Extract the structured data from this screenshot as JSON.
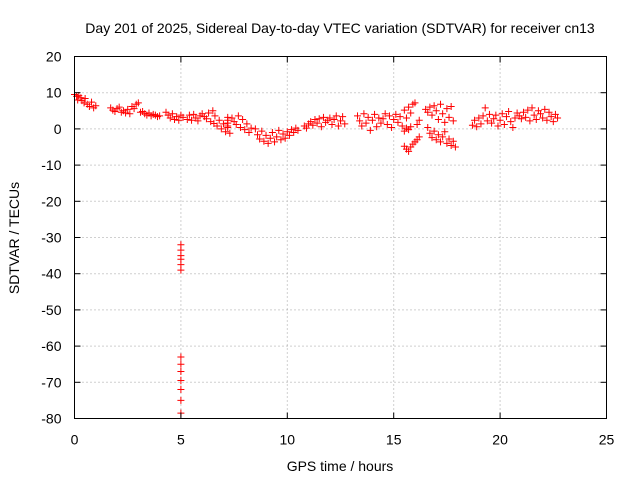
{
  "chart_data": {
    "type": "scatter",
    "title": "Day 201 of 2025, Sidereal Day-to-day VTEC variation (SDTVAR) for receiver cn13",
    "xlabel": "GPS time / hours",
    "ylabel": "SDTVAR / TECUs",
    "xlim": [
      0,
      25
    ],
    "ylim": [
      -80,
      20
    ],
    "xticks": [
      0,
      5,
      10,
      15,
      20,
      25
    ],
    "yticks": [
      20,
      10,
      0,
      -10,
      -20,
      -30,
      -40,
      -50,
      -60,
      -70,
      -80
    ],
    "grid": true,
    "marker": "+",
    "color": "#ff0000",
    "series": [
      {
        "name": "SDTVAR",
        "points": [
          [
            0.0,
            9.5
          ],
          [
            0.1,
            9.0
          ],
          [
            0.15,
            8.0
          ],
          [
            0.2,
            9.2
          ],
          [
            0.3,
            8.6
          ],
          [
            0.35,
            7.8
          ],
          [
            0.45,
            7.2
          ],
          [
            0.5,
            8.4
          ],
          [
            0.6,
            6.8
          ],
          [
            0.7,
            6.2
          ],
          [
            0.8,
            7.4
          ],
          [
            0.9,
            5.8
          ],
          [
            1.0,
            6.4
          ],
          [
            1.7,
            5.8
          ],
          [
            1.8,
            5.2
          ],
          [
            1.9,
            4.8
          ],
          [
            2.0,
            5.6
          ],
          [
            2.1,
            6.0
          ],
          [
            2.2,
            4.6
          ],
          [
            2.3,
            5.0
          ],
          [
            2.4,
            4.4
          ],
          [
            2.5,
            5.4
          ],
          [
            2.6,
            4.2
          ],
          [
            2.7,
            6.2
          ],
          [
            2.8,
            5.6
          ],
          [
            2.9,
            6.8
          ],
          [
            3.0,
            7.2
          ],
          [
            3.1,
            4.6
          ],
          [
            3.2,
            4.8
          ],
          [
            3.3,
            4.2
          ],
          [
            3.4,
            3.8
          ],
          [
            3.5,
            4.4
          ],
          [
            3.6,
            3.6
          ],
          [
            3.7,
            4.0
          ],
          [
            3.8,
            3.8
          ],
          [
            3.9,
            3.4
          ],
          [
            4.0,
            3.6
          ],
          [
            4.3,
            4.6
          ],
          [
            4.4,
            3.8
          ],
          [
            4.5,
            3.0
          ],
          [
            4.6,
            4.2
          ],
          [
            4.7,
            2.6
          ],
          [
            4.8,
            3.4
          ],
          [
            4.9,
            2.4
          ],
          [
            5.0,
            3.8
          ],
          [
            5.0,
            -32
          ],
          [
            5.0,
            -33.5
          ],
          [
            5.0,
            -35
          ],
          [
            5.0,
            -36
          ],
          [
            5.0,
            -37.5
          ],
          [
            5.0,
            -39
          ],
          [
            5.0,
            -63
          ],
          [
            5.0,
            -65
          ],
          [
            5.0,
            -67
          ],
          [
            5.0,
            -69.5
          ],
          [
            5.0,
            -72
          ],
          [
            5.0,
            -75
          ],
          [
            5.0,
            -78.5
          ],
          [
            5.1,
            3.2
          ],
          [
            5.3,
            2.6
          ],
          [
            5.4,
            3.8
          ],
          [
            5.5,
            2.4
          ],
          [
            5.6,
            4.0
          ],
          [
            5.7,
            3.0
          ],
          [
            5.8,
            2.2
          ],
          [
            5.9,
            3.6
          ],
          [
            6.0,
            4.2
          ],
          [
            6.1,
            3.4
          ],
          [
            6.2,
            2.8
          ],
          [
            6.3,
            4.4
          ],
          [
            6.4,
            2.0
          ],
          [
            6.5,
            5.0
          ],
          [
            6.55,
            1.5
          ],
          [
            6.6,
            3.6
          ],
          [
            6.7,
            0.8
          ],
          [
            6.8,
            2.4
          ],
          [
            6.9,
            0.0
          ],
          [
            7.0,
            1.4
          ],
          [
            7.1,
            -0.8
          ],
          [
            7.2,
            0.4
          ],
          [
            7.3,
            -1.2
          ],
          [
            7.2,
            3.2
          ],
          [
            7.2,
            2.4
          ],
          [
            7.2,
            1.6
          ],
          [
            7.2,
            0.8
          ],
          [
            7.4,
            3.0
          ],
          [
            7.5,
            2.0
          ],
          [
            7.6,
            1.2
          ],
          [
            7.7,
            3.6
          ],
          [
            7.8,
            0.4
          ],
          [
            7.9,
            2.6
          ],
          [
            8.0,
            -0.2
          ],
          [
            8.1,
            1.4
          ],
          [
            8.2,
            -1.0
          ],
          [
            8.3,
            0.2
          ],
          [
            8.5,
            0.0
          ],
          [
            8.6,
            -1.6
          ],
          [
            8.7,
            -2.8
          ],
          [
            8.8,
            -0.6
          ],
          [
            8.9,
            -3.4
          ],
          [
            9.0,
            -1.8
          ],
          [
            9.1,
            -4.0
          ],
          [
            9.2,
            -2.6
          ],
          [
            9.3,
            -1.0
          ],
          [
            9.4,
            -3.6
          ],
          [
            9.5,
            -2.2
          ],
          [
            9.6,
            -0.4
          ],
          [
            9.7,
            -3.0
          ],
          [
            9.8,
            -1.4
          ],
          [
            9.9,
            -2.6
          ],
          [
            10.0,
            -0.8
          ],
          [
            10.1,
            -1.8
          ],
          [
            10.2,
            -0.2
          ],
          [
            10.3,
            -1.0
          ],
          [
            10.4,
            0.2
          ],
          [
            10.5,
            -0.4
          ],
          [
            10.8,
            0.8
          ],
          [
            10.9,
            0.2
          ],
          [
            11.0,
            1.4
          ],
          [
            11.1,
            2.0
          ],
          [
            11.2,
            1.0
          ],
          [
            11.3,
            2.6
          ],
          [
            11.4,
            1.6
          ],
          [
            11.5,
            2.8
          ],
          [
            11.6,
            0.6
          ],
          [
            11.7,
            3.2
          ],
          [
            11.8,
            1.8
          ],
          [
            11.9,
            2.4
          ],
          [
            12.0,
            3.0
          ],
          [
            12.1,
            1.2
          ],
          [
            12.2,
            2.6
          ],
          [
            12.3,
            3.6
          ],
          [
            12.4,
            0.8
          ],
          [
            12.5,
            2.2
          ],
          [
            12.6,
            3.4
          ],
          [
            12.7,
            1.4
          ],
          [
            13.3,
            3.6
          ],
          [
            13.4,
            2.2
          ],
          [
            13.5,
            0.8
          ],
          [
            13.6,
            4.2
          ],
          [
            13.7,
            1.6
          ],
          [
            13.8,
            3.2
          ],
          [
            13.9,
            -0.4
          ],
          [
            14.0,
            2.4
          ],
          [
            14.1,
            4.0
          ],
          [
            14.2,
            0.6
          ],
          [
            14.3,
            3.0
          ],
          [
            14.4,
            1.6
          ],
          [
            14.5,
            2.8
          ],
          [
            14.6,
            4.2
          ],
          [
            14.7,
            1.2
          ],
          [
            14.8,
            3.6
          ],
          [
            14.9,
            0.4
          ],
          [
            15.0,
            2.6
          ],
          [
            15.1,
            4.0
          ],
          [
            15.2,
            1.8
          ],
          [
            15.3,
            3.4
          ],
          [
            15.4,
            0.8
          ],
          [
            15.5,
            5.2
          ],
          [
            15.6,
            3.0
          ],
          [
            15.7,
            6.0
          ],
          [
            15.8,
            4.4
          ],
          [
            15.9,
            6.8
          ],
          [
            16.0,
            7.2
          ],
          [
            16.1,
            1.2
          ],
          [
            16.2,
            2.4
          ],
          [
            15.5,
            -4.8
          ],
          [
            15.6,
            -5.6
          ],
          [
            15.7,
            -6.2
          ],
          [
            15.8,
            -5.0
          ],
          [
            15.9,
            -4.2
          ],
          [
            16.0,
            -3.6
          ],
          [
            16.1,
            -3.0
          ],
          [
            16.2,
            -2.2
          ],
          [
            15.5,
            -0.6
          ],
          [
            15.6,
            0.2
          ],
          [
            15.7,
            -0.2
          ],
          [
            15.8,
            0.6
          ],
          [
            16.5,
            5.4
          ],
          [
            16.6,
            4.6
          ],
          [
            16.7,
            6.0
          ],
          [
            16.8,
            3.8
          ],
          [
            16.9,
            6.4
          ],
          [
            17.0,
            5.0
          ],
          [
            17.1,
            2.6
          ],
          [
            17.2,
            6.8
          ],
          [
            17.3,
            4.2
          ],
          [
            17.4,
            1.8
          ],
          [
            17.5,
            5.6
          ],
          [
            17.6,
            3.2
          ],
          [
            17.7,
            6.2
          ],
          [
            17.8,
            2.2
          ],
          [
            16.6,
            0.4
          ],
          [
            16.7,
            -1.2
          ],
          [
            16.8,
            -2.4
          ],
          [
            16.9,
            -0.6
          ],
          [
            17.0,
            -3.0
          ],
          [
            17.1,
            -1.6
          ],
          [
            17.2,
            -3.6
          ],
          [
            17.3,
            -2.2
          ],
          [
            17.4,
            -0.8
          ],
          [
            17.5,
            -4.0
          ],
          [
            17.6,
            -2.8
          ],
          [
            17.7,
            -4.6
          ],
          [
            17.8,
            -3.4
          ],
          [
            17.9,
            -5.0
          ],
          [
            18.7,
            1.0
          ],
          [
            18.8,
            2.4
          ],
          [
            18.9,
            0.6
          ],
          [
            19.0,
            3.0
          ],
          [
            19.1,
            1.4
          ],
          [
            19.2,
            3.6
          ],
          [
            19.3,
            5.8
          ],
          [
            19.4,
            2.2
          ],
          [
            19.5,
            4.0
          ],
          [
            19.6,
            1.6
          ],
          [
            19.7,
            2.8
          ],
          [
            19.8,
            3.8
          ],
          [
            19.9,
            0.8
          ],
          [
            20.0,
            2.4
          ],
          [
            20.1,
            4.2
          ],
          [
            20.2,
            1.2
          ],
          [
            20.3,
            3.4
          ],
          [
            20.4,
            4.8
          ],
          [
            20.5,
            2.0
          ],
          [
            20.6,
            0.4
          ],
          [
            20.7,
            3.0
          ],
          [
            20.8,
            4.4
          ],
          [
            20.9,
            3.6
          ],
          [
            21.0,
            2.8
          ],
          [
            21.1,
            4.6
          ],
          [
            21.2,
            3.2
          ],
          [
            21.3,
            5.2
          ],
          [
            21.4,
            2.2
          ],
          [
            21.5,
            5.8
          ],
          [
            21.6,
            3.8
          ],
          [
            21.7,
            2.6
          ],
          [
            21.8,
            5.0
          ],
          [
            21.9,
            4.2
          ],
          [
            22.0,
            3.0
          ],
          [
            22.1,
            5.4
          ],
          [
            22.2,
            2.4
          ],
          [
            22.3,
            4.6
          ],
          [
            22.4,
            3.4
          ],
          [
            22.5,
            2.0
          ],
          [
            22.6,
            4.0
          ],
          [
            22.7,
            3.0
          ]
        ]
      }
    ]
  }
}
